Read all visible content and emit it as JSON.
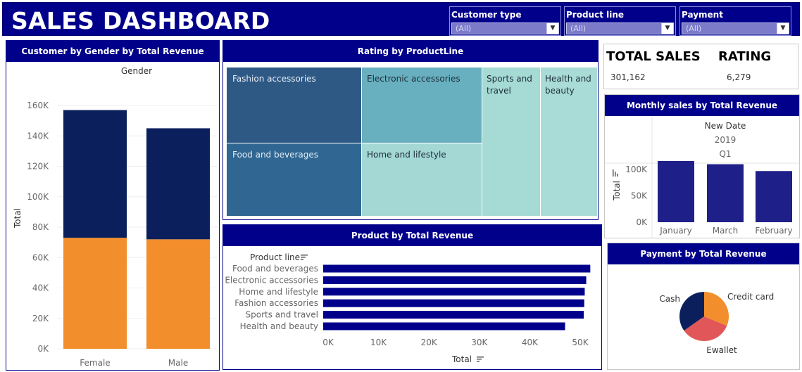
{
  "dashboard_title": "SALES DASHBOARD",
  "filters": [
    {
      "label": "Customer type",
      "value": "(All)"
    },
    {
      "label": "Product line",
      "value": "(All)"
    },
    {
      "label": "Payment",
      "value": "(All)"
    }
  ],
  "kpis": {
    "sales_label": "TOTAL SALES",
    "sales_value": "301,162",
    "rating_label": "RATING",
    "rating_value": "6,279"
  },
  "colors": {
    "navy": "#00008b",
    "bar_dark": "#0a1f5c",
    "orange": "#f28e2b",
    "bar_blue": "#1f1f8a",
    "pie_red": "#e15759"
  },
  "icons": {
    "sort": "sort-icon",
    "dropdown": "chevron-down-icon"
  },
  "chart_data": [
    {
      "type": "bar",
      "title": "Customer by Gender by Total Revenue",
      "stacked": true,
      "column_header": "Gender",
      "categories": [
        "Female",
        "Male"
      ],
      "series": [
        {
          "values": [
            73000,
            72000
          ],
          "color": "#f28e2b"
        },
        {
          "values": [
            84000,
            73000
          ],
          "color": "#0a1f5c"
        }
      ],
      "ylabel": "Total",
      "yticks": [
        "0K",
        "20K",
        "40K",
        "60K",
        "80K",
        "100K",
        "120K",
        "140K",
        "160K"
      ],
      "ylim": [
        0,
        160000
      ]
    },
    {
      "type": "treemap",
      "title": "Rating by ProductLine",
      "items": [
        "Fashion accessories",
        "Food and beverages",
        "Electronic accessories",
        "Home and lifestyle",
        "Sports and travel",
        "Health and beauty"
      ]
    },
    {
      "type": "bar",
      "orientation": "horizontal",
      "title": "Product by Total Revenue",
      "row_header": "Product line",
      "categories": [
        "Food and beverages",
        "Electronic accessories",
        "Home and lifestyle",
        "Fashion accessories",
        "Sports and travel",
        "Health and beauty"
      ],
      "values": [
        52000,
        51200,
        50900,
        50800,
        50700,
        47000
      ],
      "xlabel": "Total",
      "xticks": [
        "0K",
        "10K",
        "20K",
        "30K",
        "40K",
        "50K"
      ],
      "xlim": [
        0,
        50000
      ]
    },
    {
      "type": "bar",
      "title": "Monthly sales by Total Revenue",
      "column_headers": [
        "New Date",
        "2019",
        "Q1"
      ],
      "categories": [
        "January",
        "March",
        "February"
      ],
      "values": [
        116000,
        110000,
        97000
      ],
      "ylabel": "Total",
      "yticks": [
        "0K",
        "50K",
        "100K"
      ],
      "ylim": [
        0,
        100000
      ]
    },
    {
      "type": "pie",
      "title": "Payment by Total Revenue",
      "slices": [
        {
          "label": "Credit card",
          "value": 100767
        },
        {
          "label": "Ewallet",
          "value": 109993
        },
        {
          "label": "Cash",
          "value": 112206
        }
      ]
    }
  ]
}
